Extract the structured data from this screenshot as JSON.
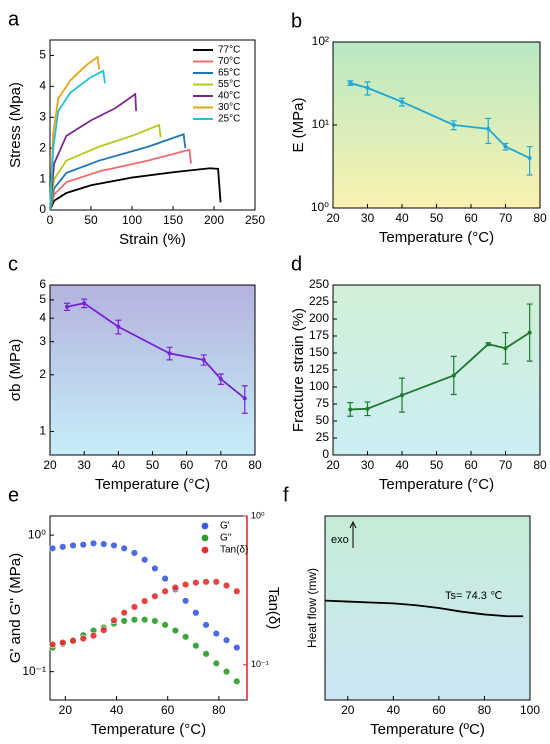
{
  "chart_data": [
    {
      "type": "line",
      "label": "a",
      "xlabel": "Strain (%)",
      "ylabel": "Stress (Mpa)",
      "xlim": [
        0,
        250
      ],
      "xticks": [
        0,
        50,
        100,
        150,
        200,
        250
      ],
      "ylim": [
        0,
        5.5
      ],
      "yticks": [
        0,
        1,
        2,
        3,
        4,
        5
      ],
      "legend": "upper right",
      "series": [
        {
          "name": "77°C",
          "color": "#000000",
          "x": [
            0,
            5,
            20,
            50,
            100,
            150,
            195,
            205,
            208
          ],
          "values": [
            0,
            0.3,
            0.55,
            0.8,
            1.05,
            1.22,
            1.35,
            1.33,
            0.25
          ]
        },
        {
          "name": "70°C",
          "color": "#f06c6c",
          "x": [
            0,
            5,
            20,
            60,
            120,
            170,
            172
          ],
          "values": [
            0,
            0.5,
            0.9,
            1.25,
            1.6,
            1.95,
            1.5
          ]
        },
        {
          "name": "65°C",
          "color": "#1f77b4",
          "x": [
            0,
            5,
            20,
            60,
            120,
            163,
            165
          ],
          "values": [
            0,
            0.7,
            1.2,
            1.6,
            2.05,
            2.45,
            2.0
          ]
        },
        {
          "name": "55°C",
          "color": "#b5c91c",
          "x": [
            0,
            5,
            20,
            60,
            100,
            133,
            135
          ],
          "values": [
            0,
            1.0,
            1.6,
            2.05,
            2.4,
            2.75,
            2.35
          ]
        },
        {
          "name": "40°C",
          "color": "#7b2a8c",
          "x": [
            0,
            5,
            20,
            50,
            80,
            104,
            105
          ],
          "values": [
            0,
            1.5,
            2.4,
            2.9,
            3.3,
            3.75,
            3.2
          ]
        },
        {
          "name": "30°C",
          "color": "#e8a317",
          "x": [
            0,
            4,
            10,
            25,
            45,
            58,
            60
          ],
          "values": [
            0,
            2.5,
            3.6,
            4.2,
            4.7,
            4.95,
            4.55
          ]
        },
        {
          "name": "25°C",
          "color": "#1fc2d4",
          "x": [
            0,
            4,
            10,
            25,
            50,
            65,
            67
          ],
          "values": [
            0,
            2.0,
            3.2,
            3.8,
            4.3,
            4.5,
            4.1
          ]
        }
      ]
    },
    {
      "type": "line",
      "label": "b",
      "xlabel": "Temperature (°C)",
      "ylabel": "E (MPa)",
      "ylog": true,
      "background": [
        "#b8e8c4",
        "#faf2b0"
      ],
      "xlim": [
        20,
        80
      ],
      "xticks": [
        20,
        30,
        40,
        50,
        60,
        70,
        80
      ],
      "ylim": [
        1,
        100
      ],
      "yticks": [
        {
          "value": 1,
          "label": "10⁰"
        },
        {
          "value": 10,
          "label": "10¹"
        },
        {
          "value": 100,
          "label": "10²"
        }
      ],
      "x": [
        25,
        30,
        40,
        55,
        65,
        70,
        77
      ],
      "series": [
        {
          "color": "#1ea7d8",
          "values": [
            32,
            28,
            19,
            10,
            9,
            5.5,
            4
          ],
          "errors": [
            2,
            5,
            2,
            1.2,
            3,
            0.5,
            1.5
          ]
        }
      ]
    },
    {
      "type": "line",
      "label": "c",
      "xlabel": "Temperature (°C)",
      "ylabel": "σb (MPa)",
      "ylog": true,
      "background": [
        "#b4b2de",
        "#c6eef8"
      ],
      "xlim": [
        20,
        80
      ],
      "xticks": [
        20,
        30,
        40,
        50,
        60,
        70,
        80
      ],
      "ylim": [
        0.75,
        6
      ],
      "yticks": [
        1,
        2,
        3,
        4,
        5,
        6
      ],
      "x": [
        25,
        30,
        40,
        55,
        65,
        70,
        77
      ],
      "series": [
        {
          "color": "#7b22d6",
          "values": [
            4.6,
            4.8,
            3.6,
            2.6,
            2.4,
            1.9,
            1.5
          ],
          "errors": [
            0.2,
            0.25,
            0.3,
            0.2,
            0.15,
            0.12,
            0.25
          ]
        }
      ]
    },
    {
      "type": "line",
      "label": "d",
      "xlabel": "Temperature (°C)",
      "ylabel": "Fracture strain (%)",
      "background": [
        "#d2f0d6",
        "#cceef4"
      ],
      "xlim": [
        20,
        80
      ],
      "xticks": [
        20,
        30,
        40,
        50,
        60,
        70,
        80
      ],
      "ylim": [
        0,
        250
      ],
      "yticks": [
        0,
        25,
        50,
        75,
        100,
        125,
        150,
        175,
        200,
        225,
        250
      ],
      "x": [
        25,
        30,
        40,
        55,
        65,
        70,
        77
      ],
      "series": [
        {
          "color": "#1e7a2e",
          "values": [
            67,
            68,
            88,
            117,
            163,
            157,
            180
          ],
          "errors": [
            10,
            10,
            25,
            28,
            2,
            23,
            42
          ]
        }
      ]
    },
    {
      "type": "scatter",
      "label": "e",
      "xlabel": "Temperature (°C)",
      "ylabel": "G' and G'' (MPa)",
      "y2label": "Tan(δ)",
      "ylog": true,
      "y2log": true,
      "legend": "upper right",
      "xlim": [
        14,
        91
      ],
      "xticks": [
        20,
        40,
        60,
        80
      ],
      "ylim": [
        0.062,
        1.38
      ],
      "yticks": [
        {
          "value": 0.1,
          "label": "10⁻¹"
        },
        {
          "value": 1,
          "label": "10⁰"
        }
      ],
      "y2lim": [
        0.058,
        1.0
      ],
      "y2ticks": [
        {
          "value": 0.1,
          "label": "10⁻¹"
        },
        {
          "value": 1,
          "label": "10⁰"
        }
      ],
      "y2color": "#e02020",
      "x": [
        15,
        19,
        23,
        27,
        31,
        35,
        39,
        43,
        47,
        51,
        55,
        59,
        63,
        67,
        71,
        75,
        79,
        83,
        87
      ],
      "series": [
        {
          "name": "G'",
          "color": "#3b5bdb",
          "values": [
            0.8,
            0.82,
            0.84,
            0.85,
            0.87,
            0.86,
            0.84,
            0.8,
            0.74,
            0.66,
            0.57,
            0.48,
            0.4,
            0.33,
            0.27,
            0.22,
            0.19,
            0.17,
            0.15
          ]
        },
        {
          "name": "G''",
          "color": "#2a9d2a",
          "values": [
            0.15,
            0.16,
            0.17,
            0.185,
            0.2,
            0.21,
            0.225,
            0.235,
            0.24,
            0.24,
            0.235,
            0.22,
            0.2,
            0.18,
            0.155,
            0.135,
            0.115,
            0.1,
            0.085
          ]
        },
        {
          "name": "Tan(δ)",
          "color": "#e03030",
          "axis": "y2",
          "values": [
            0.137,
            0.141,
            0.145,
            0.15,
            0.157,
            0.171,
            0.199,
            0.224,
            0.245,
            0.268,
            0.289,
            0.312,
            0.33,
            0.346,
            0.356,
            0.361,
            0.361,
            0.341,
            0.312
          ]
        }
      ]
    },
    {
      "type": "line",
      "label": "f",
      "xlabel": "Temperature (ºC)",
      "ylabel": "Heat flow (mw)",
      "background": [
        "#c6ecd6",
        "#cce6f6"
      ],
      "xlim": [
        10,
        100
      ],
      "xticks": [
        20,
        40,
        60,
        80,
        100
      ],
      "ylim": [
        0,
        1
      ],
      "annotations": [
        "Ts= 74.3 ℃",
        "exo"
      ],
      "x": [
        10,
        20,
        30,
        40,
        50,
        60,
        70,
        80,
        90,
        97
      ],
      "series": [
        {
          "color": "#000000",
          "values": [
            0.54,
            0.535,
            0.53,
            0.525,
            0.515,
            0.5,
            0.48,
            0.465,
            0.455,
            0.455
          ]
        }
      ]
    }
  ]
}
